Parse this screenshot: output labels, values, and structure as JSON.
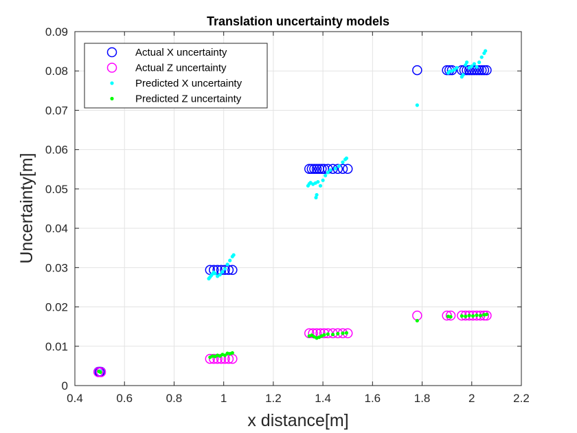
{
  "chart_data": {
    "type": "scatter",
    "title": "Translation uncertainty models",
    "xlabel": "x distance[m]",
    "ylabel": "Uncertainty[m]",
    "xlim": [
      0.4,
      2.2
    ],
    "ylim": [
      0,
      0.09
    ],
    "xticks": [
      "0.4",
      "0.6",
      "0.8",
      "1",
      "1.2",
      "1.4",
      "1.6",
      "1.8",
      "2",
      "2.2"
    ],
    "yticks": [
      "0",
      "0.01",
      "0.02",
      "0.03",
      "0.04",
      "0.05",
      "0.06",
      "0.07",
      "0.08",
      "0.09"
    ],
    "grid": true,
    "legend_position": "top-left",
    "series": [
      {
        "name": "Actual X uncertainty",
        "marker": "circle-open",
        "color": "#0000ff",
        "points": [
          [
            0.495,
            0.0035
          ],
          [
            0.5,
            0.0035
          ],
          [
            0.505,
            0.0035
          ],
          [
            0.945,
            0.0294
          ],
          [
            0.96,
            0.0294
          ],
          [
            0.975,
            0.0294
          ],
          [
            0.99,
            0.0294
          ],
          [
            1.005,
            0.0294
          ],
          [
            1.02,
            0.0294
          ],
          [
            1.035,
            0.0294
          ],
          [
            1.345,
            0.0551
          ],
          [
            1.355,
            0.0551
          ],
          [
            1.365,
            0.0551
          ],
          [
            1.375,
            0.0551
          ],
          [
            1.385,
            0.0551
          ],
          [
            1.395,
            0.0551
          ],
          [
            1.405,
            0.0551
          ],
          [
            1.42,
            0.0551
          ],
          [
            1.44,
            0.0551
          ],
          [
            1.46,
            0.0551
          ],
          [
            1.48,
            0.0551
          ],
          [
            1.5,
            0.0551
          ],
          [
            1.78,
            0.0802
          ],
          [
            1.9,
            0.0802
          ],
          [
            1.91,
            0.0802
          ],
          [
            1.92,
            0.0802
          ],
          [
            1.96,
            0.0802
          ],
          [
            1.97,
            0.0802
          ],
          [
            1.98,
            0.0802
          ],
          [
            1.99,
            0.0802
          ],
          [
            2.0,
            0.0802
          ],
          [
            2.01,
            0.0802
          ],
          [
            2.02,
            0.0802
          ],
          [
            2.03,
            0.0802
          ],
          [
            2.04,
            0.0802
          ],
          [
            2.05,
            0.0802
          ],
          [
            2.06,
            0.0802
          ]
        ]
      },
      {
        "name": "Actual Z uncertainty",
        "marker": "circle-open",
        "color": "#ff00ff",
        "points": [
          [
            0.495,
            0.0034
          ],
          [
            0.505,
            0.0034
          ],
          [
            0.945,
            0.0068
          ],
          [
            0.96,
            0.0068
          ],
          [
            0.975,
            0.0068
          ],
          [
            0.99,
            0.0068
          ],
          [
            1.005,
            0.0068
          ],
          [
            1.02,
            0.0068
          ],
          [
            1.035,
            0.0068
          ],
          [
            1.345,
            0.0133
          ],
          [
            1.36,
            0.0133
          ],
          [
            1.375,
            0.0133
          ],
          [
            1.39,
            0.0133
          ],
          [
            1.405,
            0.0133
          ],
          [
            1.42,
            0.0133
          ],
          [
            1.44,
            0.0133
          ],
          [
            1.46,
            0.0133
          ],
          [
            1.48,
            0.0133
          ],
          [
            1.5,
            0.0133
          ],
          [
            1.78,
            0.0178
          ],
          [
            1.9,
            0.0178
          ],
          [
            1.915,
            0.0178
          ],
          [
            1.96,
            0.0178
          ],
          [
            1.975,
            0.0178
          ],
          [
            1.99,
            0.0178
          ],
          [
            2.005,
            0.0178
          ],
          [
            2.02,
            0.0178
          ],
          [
            2.035,
            0.0178
          ],
          [
            2.05,
            0.0178
          ],
          [
            2.06,
            0.0178
          ]
        ]
      },
      {
        "name": "Predicted X uncertainty",
        "marker": "dot",
        "color": "#00ffff",
        "points": [
          [
            0.498,
            0.0036
          ],
          [
            0.502,
            0.0037
          ],
          [
            0.94,
            0.0272
          ],
          [
            0.945,
            0.0276
          ],
          [
            0.95,
            0.028
          ],
          [
            0.955,
            0.0284
          ],
          [
            0.96,
            0.0288
          ],
          [
            0.965,
            0.0285
          ],
          [
            0.975,
            0.0278
          ],
          [
            0.985,
            0.0282
          ],
          [
            0.995,
            0.0289
          ],
          [
            1.005,
            0.0297
          ],
          [
            1.015,
            0.0308
          ],
          [
            1.025,
            0.0318
          ],
          [
            1.035,
            0.0328
          ],
          [
            1.04,
            0.0332
          ],
          [
            1.34,
            0.0508
          ],
          [
            1.345,
            0.0513
          ],
          [
            1.35,
            0.0516
          ],
          [
            1.36,
            0.0512
          ],
          [
            1.37,
            0.0515
          ],
          [
            1.375,
            0.0485
          ],
          [
            1.372,
            0.0478
          ],
          [
            1.38,
            0.0518
          ],
          [
            1.39,
            0.0508
          ],
          [
            1.4,
            0.0522
          ],
          [
            1.41,
            0.0534
          ],
          [
            1.42,
            0.0542
          ],
          [
            1.43,
            0.0548
          ],
          [
            1.45,
            0.0552
          ],
          [
            1.465,
            0.0558
          ],
          [
            1.48,
            0.0568
          ],
          [
            1.49,
            0.0575
          ],
          [
            1.495,
            0.0578
          ],
          [
            1.78,
            0.0713
          ],
          [
            1.905,
            0.0795
          ],
          [
            1.91,
            0.0799
          ],
          [
            1.92,
            0.08
          ],
          [
            1.93,
            0.0803
          ],
          [
            1.94,
            0.0808
          ],
          [
            1.96,
            0.0785
          ],
          [
            1.965,
            0.079
          ],
          [
            1.975,
            0.0815
          ],
          [
            1.98,
            0.0822
          ],
          [
            1.99,
            0.0808
          ],
          [
            2.0,
            0.0812
          ],
          [
            2.01,
            0.0818
          ],
          [
            2.02,
            0.081
          ],
          [
            2.03,
            0.0822
          ],
          [
            2.04,
            0.0835
          ],
          [
            2.05,
            0.0845
          ],
          [
            2.055,
            0.0851
          ]
        ]
      },
      {
        "name": "Predicted Z uncertainty",
        "marker": "dot",
        "color": "#00ff00",
        "points": [
          [
            0.497,
            0.0036
          ],
          [
            0.503,
            0.0034
          ],
          [
            0.945,
            0.0072
          ],
          [
            0.955,
            0.0075
          ],
          [
            0.965,
            0.0074
          ],
          [
            0.975,
            0.0077
          ],
          [
            0.985,
            0.0075
          ],
          [
            0.995,
            0.0079
          ],
          [
            1.005,
            0.0077
          ],
          [
            1.015,
            0.0082
          ],
          [
            1.025,
            0.0081
          ],
          [
            1.035,
            0.0083
          ],
          [
            1.345,
            0.0126
          ],
          [
            1.355,
            0.0128
          ],
          [
            1.365,
            0.0124
          ],
          [
            1.375,
            0.0121
          ],
          [
            1.385,
            0.0123
          ],
          [
            1.395,
            0.0126
          ],
          [
            1.405,
            0.0129
          ],
          [
            1.42,
            0.0131
          ],
          [
            1.44,
            0.013
          ],
          [
            1.46,
            0.0132
          ],
          [
            1.48,
            0.0133
          ],
          [
            1.495,
            0.0134
          ],
          [
            1.78,
            0.0165
          ],
          [
            1.905,
            0.0176
          ],
          [
            1.915,
            0.0175
          ],
          [
            1.96,
            0.0177
          ],
          [
            1.975,
            0.0176
          ],
          [
            1.99,
            0.0178
          ],
          [
            2.005,
            0.0177
          ],
          [
            2.02,
            0.0179
          ],
          [
            2.035,
            0.0178
          ],
          [
            2.05,
            0.018
          ],
          [
            2.06,
            0.0181
          ]
        ]
      }
    ]
  }
}
